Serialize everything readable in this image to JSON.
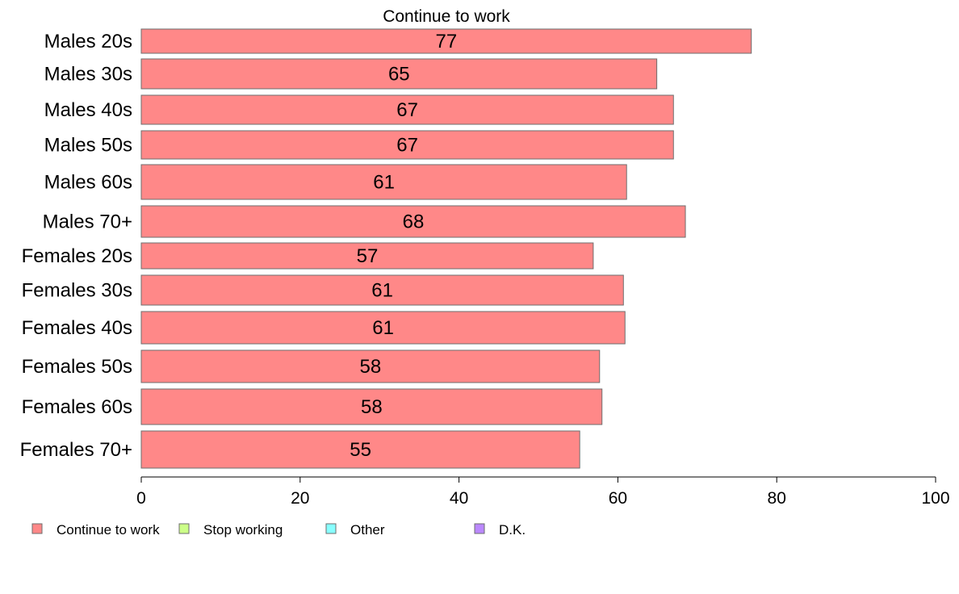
{
  "chart_data": {
    "type": "bar",
    "orientation": "horizontal",
    "title": "Continue to work",
    "xlabel": "",
    "ylabel": "",
    "categories": [
      "Males 20s",
      "Males 30s",
      "Males 40s",
      "Males 50s",
      "Males 60s",
      "Males 70+",
      "Females 20s",
      "Females 30s",
      "Females 40s",
      "Females 50s",
      "Females 60s",
      "Females 70+"
    ],
    "series": [
      {
        "name": "Continue to work",
        "color": "#ff8888",
        "values": [
          76.8,
          64.9,
          67.0,
          67.0,
          61.1,
          68.5,
          56.9,
          60.7,
          60.9,
          57.7,
          58.0,
          55.2
        ],
        "labels": [
          "77",
          "65",
          "67",
          "67",
          "61",
          "68",
          "57",
          "61",
          "61",
          "58",
          "58",
          "55"
        ]
      }
    ],
    "xlim": [
      0,
      100
    ],
    "xticks": [
      0,
      20,
      40,
      60,
      80,
      100
    ],
    "grid": false,
    "legend": {
      "position": "bottom-left",
      "entries": [
        {
          "label": "Continue to work",
          "color": "#ff8888"
        },
        {
          "label": "Stop working",
          "color": "#ccff88"
        },
        {
          "label": "Other",
          "color": "#88ffff"
        },
        {
          "label": "D.K.",
          "color": "#bb88ff"
        }
      ]
    }
  }
}
